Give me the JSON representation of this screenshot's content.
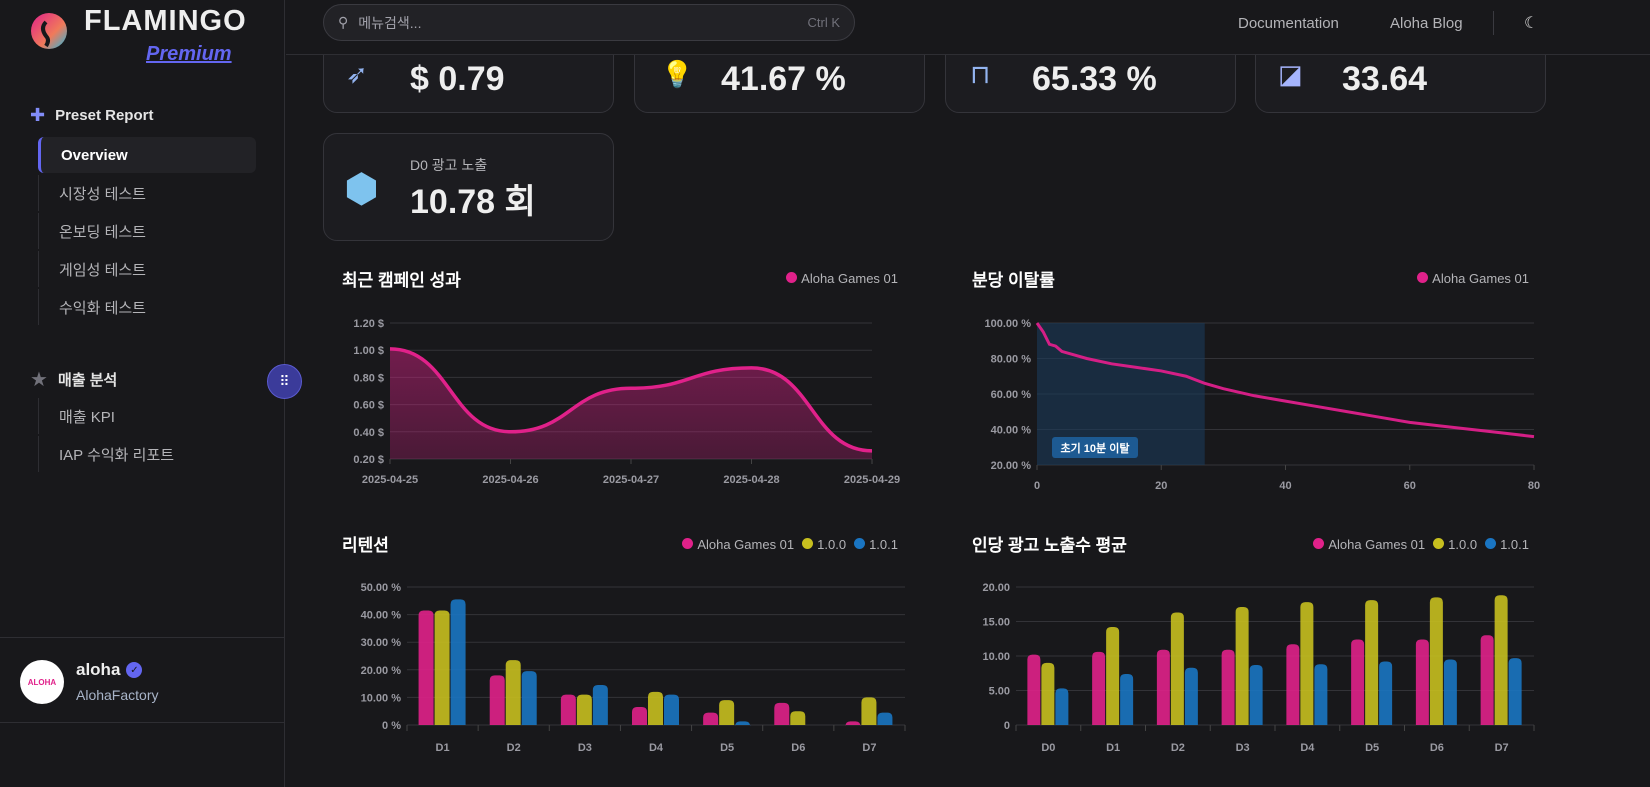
{
  "brand": {
    "name": "FLAMINGO",
    "tier": "Premium"
  },
  "sidebar": {
    "section1": "Preset Report",
    "items1": [
      "Overview",
      "시장성 테스트",
      "온보딩 테스트",
      "게임성 테스트",
      "수익화 테스트"
    ],
    "section2": "매출 분석",
    "items2": [
      "매출 KPI",
      "IAP 수익화 리포트"
    ],
    "user": {
      "name": "aloha",
      "org": "AlohaFactory",
      "avatar_text": "ALOHA"
    }
  },
  "header": {
    "search_placeholder": "메뉴검색...",
    "shortcut": "Ctrl K",
    "links": [
      "Documentation",
      "Aloha Blog"
    ]
  },
  "cards": [
    {
      "value": "$ 0.79"
    },
    {
      "value": "41.67 %"
    },
    {
      "value": "65.33 %"
    },
    {
      "value": "33.64"
    },
    {
      "label": "D0 광고 노출",
      "value": "10.78 회"
    }
  ],
  "colors": {
    "pink": "#e0218a",
    "yellow": "#c7bf1f",
    "blue": "#1a75c2",
    "accent": "#6366f1"
  },
  "chart_data": [
    {
      "type": "area",
      "title": "최근 캠페인 성과",
      "legend": [
        "Aloha Games 01"
      ],
      "categories": [
        "2025-04-25",
        "2025-04-26",
        "2025-04-27",
        "2025-04-28",
        "2025-04-29"
      ],
      "values": [
        1.01,
        0.4,
        0.72,
        0.87,
        0.26
      ],
      "yticks": [
        "1.20 $",
        "1.00 $",
        "0.80 $",
        "0.60 $",
        "0.40 $",
        "0.20 $"
      ],
      "ylim": [
        0.2,
        1.2
      ]
    },
    {
      "type": "line",
      "title": "분당 이탈률",
      "legend": [
        "Aloha Games 01"
      ],
      "x": [
        0,
        1,
        2,
        3,
        4,
        6,
        8,
        12,
        16,
        20,
        24,
        27,
        30,
        35,
        40,
        45,
        50,
        55,
        60,
        65,
        70,
        75,
        80
      ],
      "values": [
        100,
        95,
        88,
        87,
        84,
        82,
        80,
        77,
        75,
        73,
        70,
        66,
        63,
        59,
        56,
        53,
        50,
        47,
        44,
        42,
        40,
        38,
        36
      ],
      "xticks": [
        "0",
        "20",
        "40",
        "60",
        "80"
      ],
      "yticks": [
        "100.00 %",
        "80.00 %",
        "60.00 %",
        "40.00 %",
        "20.00 %"
      ],
      "ylim": [
        20,
        100
      ],
      "xlim": [
        0,
        80
      ],
      "annotation": {
        "label": "초기 10분 이탈",
        "x_range": [
          0,
          27
        ]
      }
    },
    {
      "type": "bar",
      "title": "리텐션",
      "legend": [
        "Aloha Games 01",
        "1.0.0",
        "1.0.1"
      ],
      "categories": [
        "D1",
        "D2",
        "D3",
        "D4",
        "D5",
        "D6",
        "D7"
      ],
      "series": [
        {
          "name": "Aloha Games 01",
          "values": [
            41.5,
            18,
            11,
            6.5,
            4.5,
            8,
            1.3
          ]
        },
        {
          "name": "1.0.0",
          "values": [
            41.5,
            23.5,
            11,
            12,
            9,
            5,
            10
          ]
        },
        {
          "name": "1.0.1",
          "values": [
            45.5,
            19.5,
            14.5,
            11,
            1.3,
            0,
            4.5
          ]
        }
      ],
      "yticks": [
        "50.00 %",
        "40.00 %",
        "30.00 %",
        "20.00 %",
        "10.00 %",
        "0 %"
      ],
      "ylim": [
        0,
        50
      ]
    },
    {
      "type": "bar",
      "title": "인당 광고 노출수 평균",
      "legend": [
        "Aloha Games 01",
        "1.0.0",
        "1.0.1"
      ],
      "categories": [
        "D0",
        "D1",
        "D2",
        "D3",
        "D4",
        "D5",
        "D6",
        "D7"
      ],
      "series": [
        {
          "name": "Aloha Games 01",
          "values": [
            10.2,
            10.6,
            10.9,
            10.9,
            11.7,
            12.4,
            12.4,
            13
          ]
        },
        {
          "name": "1.0.0",
          "values": [
            9,
            14.2,
            16.3,
            17.1,
            17.8,
            18.1,
            18.5,
            18.8
          ]
        },
        {
          "name": "1.0.1",
          "values": [
            5.3,
            7.4,
            8.3,
            8.7,
            8.8,
            9.2,
            9.5,
            9.7
          ]
        }
      ],
      "yticks": [
        "20.00",
        "15.00",
        "10.00",
        "5.00",
        "0"
      ],
      "ylim": [
        0,
        20
      ]
    }
  ]
}
